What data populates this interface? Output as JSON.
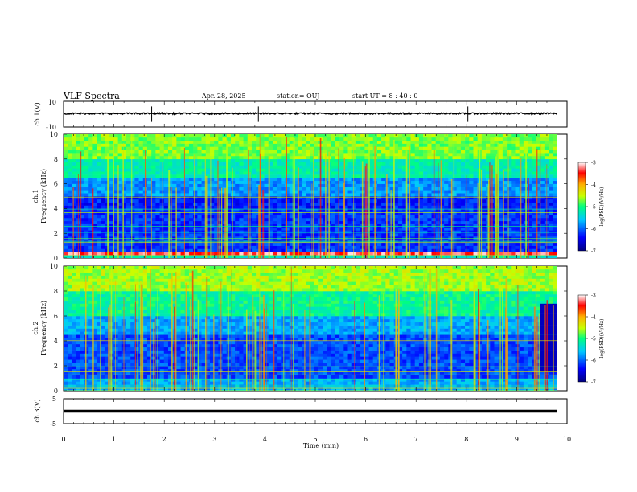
{
  "header": {
    "title": "VLF Spectra",
    "date": "Apr. 28, 2025",
    "station": "station= OUJ",
    "start": "start  UT =   8 : 40 : 0"
  },
  "chart_data": [
    {
      "type": "line",
      "panel": "ch1-waveform",
      "ylabel": "ch.1(V)",
      "ylim": [
        -10,
        10
      ],
      "yticklabels": [
        "10",
        "-10"
      ],
      "series": [
        {
          "values_description_free": true,
          "level": 0.5,
          "spikes_x": [
            1.75,
            3.87,
            8.03
          ]
        }
      ]
    },
    {
      "type": "heatmap",
      "panel": "ch1-spectrogram",
      "ylabel": "ch.1\nFrequency (kHz)",
      "ylabel_lines": [
        "ch.1",
        "Frequency (kHz)"
      ],
      "ylim": [
        0,
        10
      ],
      "yticks": [
        0,
        2,
        4,
        6,
        8,
        10
      ],
      "yticklabels": [
        "0",
        "2",
        "4",
        "6",
        "8",
        "10"
      ],
      "xlim": [
        0,
        9.8
      ],
      "bands": [
        {
          "from": 0,
          "to": 0.25,
          "level": -5.3
        },
        {
          "from": 0.25,
          "to": 0.5,
          "level": -3.3
        },
        {
          "from": 0.5,
          "to": 4.0,
          "level": -6.2
        },
        {
          "from": 4.0,
          "to": 4.9,
          "level": -6.3
        },
        {
          "from": 4.9,
          "to": 6.5,
          "level": -5.8
        },
        {
          "from": 6.5,
          "to": 8.0,
          "level": -5.2
        },
        {
          "from": 8.0,
          "to": 10.0,
          "level": -4.7
        }
      ],
      "colorbar": {
        "label": "log(PSD)(V²/Hz)",
        "range": [
          -7,
          -3
        ],
        "ticklabels": [
          "-3",
          "-4",
          "-5",
          "-6",
          "-7"
        ]
      }
    },
    {
      "type": "heatmap",
      "panel": "ch2-spectrogram",
      "ylabel_lines": [
        "ch.2",
        "Frequency (kHz)"
      ],
      "ylim": [
        0,
        10
      ],
      "yticks": [
        0,
        2,
        4,
        6,
        8,
        10
      ],
      "yticklabels": [
        "0",
        "2",
        "4",
        "6",
        "8",
        "10"
      ],
      "xlim": [
        0,
        9.8
      ],
      "bands": [
        {
          "from": 0,
          "to": 1.0,
          "level": -5.7
        },
        {
          "from": 1.0,
          "to": 4.5,
          "level": -6.1
        },
        {
          "from": 4.5,
          "to": 6.0,
          "level": -5.7
        },
        {
          "from": 6.0,
          "to": 8.0,
          "level": -5.1
        },
        {
          "from": 8.0,
          "to": 10.0,
          "level": -4.6
        }
      ],
      "quiet_after_x": 9.45,
      "colorbar": {
        "label": "log(PSD)(V²/Hz)",
        "range": [
          -7,
          -3
        ],
        "ticklabels": [
          "-3",
          "-4",
          "-5",
          "-6",
          "-7"
        ]
      }
    },
    {
      "type": "line",
      "panel": "ch3-waveform",
      "ylabel": "ch.3(V)",
      "ylim": [
        -5,
        5
      ],
      "yticklabels": [
        "5",
        "-5"
      ],
      "xlabel": "Time (min)",
      "xlim": [
        0,
        10
      ],
      "xticks": [
        0,
        1,
        2,
        3,
        4,
        5,
        6,
        7,
        8,
        9,
        10
      ],
      "xticklabels": [
        "0",
        "1",
        "2",
        "3",
        "4",
        "5",
        "6",
        "7",
        "8",
        "9",
        "10"
      ],
      "series": [
        {
          "level": 0.0
        }
      ]
    }
  ]
}
